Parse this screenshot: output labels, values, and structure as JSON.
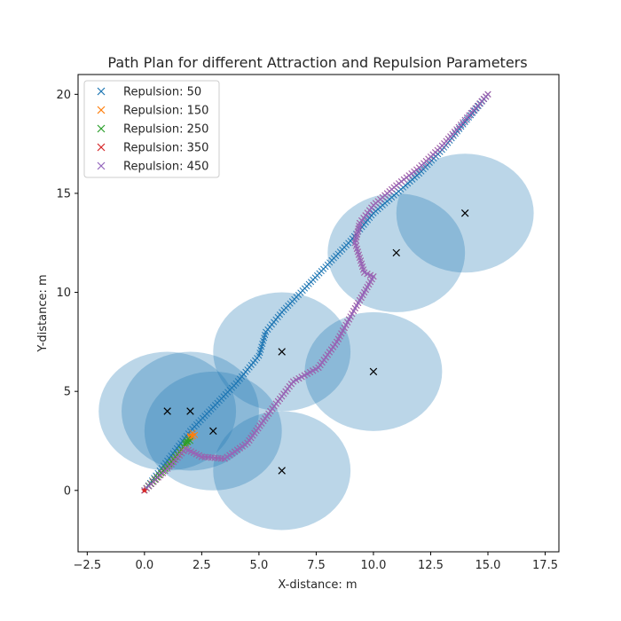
{
  "chart_data": {
    "type": "scatter",
    "title": "Path Plan for different Attraction and Repulsion Parameters",
    "xlabel": "X-distance: m",
    "ylabel": "Y-distance: m",
    "xlim": [
      -2.9,
      18.1
    ],
    "ylim": [
      -3.1,
      21.0
    ],
    "xticks": [
      -2.5,
      0.0,
      2.5,
      5.0,
      7.5,
      10.0,
      12.5,
      15.0,
      17.5
    ],
    "xtick_labels": [
      "−2.5",
      "0.0",
      "2.5",
      "5.0",
      "7.5",
      "10.0",
      "12.5",
      "15.0",
      "17.5"
    ],
    "yticks": [
      0,
      5,
      10,
      15,
      20
    ],
    "ytick_labels": [
      "0",
      "5",
      "10",
      "15",
      "20"
    ],
    "grid": false,
    "legend_placement": "top-left",
    "start": {
      "x": 0,
      "y": 0
    },
    "goal": {
      "x": 15,
      "y": 20
    },
    "obstacles": [
      {
        "x": 1,
        "y": 4
      },
      {
        "x": 2,
        "y": 4
      },
      {
        "x": 3,
        "y": 3
      },
      {
        "x": 6,
        "y": 1
      },
      {
        "x": 6,
        "y": 7
      },
      {
        "x": 10,
        "y": 6
      },
      {
        "x": 11,
        "y": 12
      },
      {
        "x": 14,
        "y": 14
      }
    ],
    "obstacle_radius": 3,
    "obstacle_fill": "#1f77b4",
    "obstacle_marker_color": "#000000",
    "start_color": "#d62728",
    "series": [
      {
        "name": "Repulsion: 50",
        "color": "#1f77b4",
        "x": [
          0,
          1,
          2,
          3,
          4,
          5,
          5.3,
          6,
          7,
          8,
          9,
          10,
          11,
          12,
          13,
          14,
          15
        ],
        "y": [
          0,
          1.5,
          3,
          4.2,
          5.4,
          6.8,
          8,
          9,
          10.2,
          11.4,
          12.6,
          14,
          15,
          16,
          17.2,
          18.6,
          20
        ]
      },
      {
        "name": "Repulsion: 150",
        "color": "#ff7f0e",
        "x": [
          0,
          1,
          1.8,
          2.0,
          2.2,
          1.9,
          2.1
        ],
        "y": [
          0,
          1.2,
          2.3,
          2.7,
          2.8,
          2.6,
          2.9
        ]
      },
      {
        "name": "Repulsion: 250",
        "color": "#2ca02c",
        "x": [
          0,
          1,
          1.7,
          1.9,
          2.0,
          1.8
        ],
        "y": [
          0,
          1.2,
          2.2,
          2.6,
          2.5,
          2.4
        ]
      },
      {
        "name": "Repulsion: 350",
        "color": "#d62728",
        "x": [
          0,
          1,
          1.8,
          2.5,
          3.5,
          4.5,
          5.5,
          6.5,
          7.6,
          8.4,
          9.2,
          10.0,
          9.6,
          9.2,
          9.4,
          10.0,
          11.0,
          12.0,
          13.0,
          14.0,
          15.0
        ],
        "y": [
          0,
          1.1,
          2.1,
          1.7,
          1.6,
          2.4,
          4.0,
          5.5,
          6.2,
          7.5,
          9.2,
          10.8,
          11.0,
          12.5,
          13.5,
          14.4,
          15.4,
          16.3,
          17.4,
          18.7,
          20.0
        ]
      },
      {
        "name": "Repulsion: 450",
        "color": "#9467bd",
        "x": [
          0,
          1,
          1.8,
          2.5,
          3.5,
          4.5,
          5.5,
          6.5,
          7.6,
          8.4,
          9.2,
          10.0,
          9.6,
          9.2,
          9.4,
          10.0,
          11.0,
          12.0,
          13.0,
          14.0,
          15.0
        ],
        "y": [
          0,
          1.1,
          2.1,
          1.7,
          1.6,
          2.4,
          4.0,
          5.5,
          6.2,
          7.5,
          9.2,
          10.8,
          11.0,
          12.5,
          13.5,
          14.4,
          15.4,
          16.3,
          17.4,
          18.7,
          20.0
        ]
      }
    ]
  }
}
